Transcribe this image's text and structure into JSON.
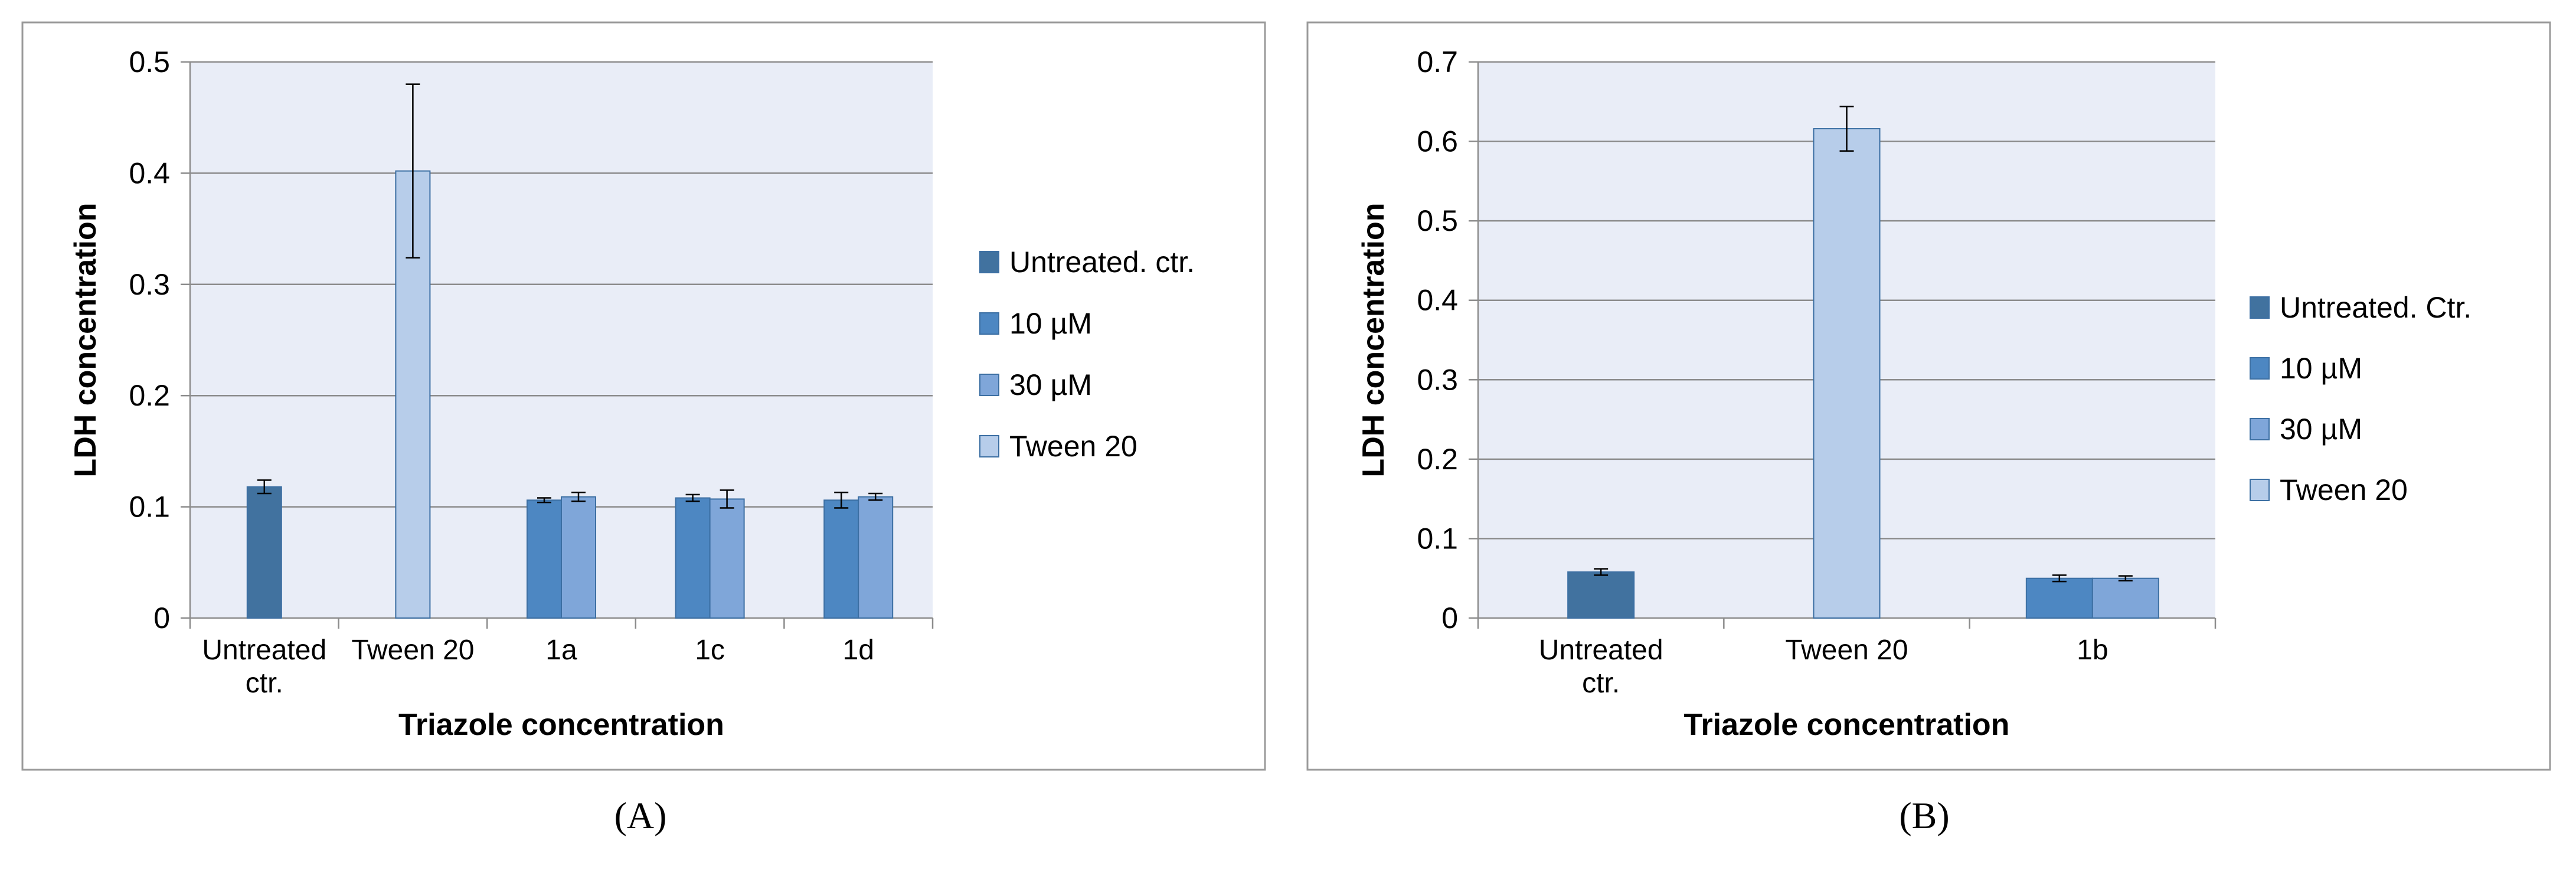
{
  "colors": {
    "untreated": "#41729F",
    "10uM": "#4D87C2",
    "30uM": "#7FA6D9",
    "tween": "#B7CDEA",
    "plot_bg": "#E9EDF7",
    "grid": "#8C8C8C",
    "frame": "#9A9A9A"
  },
  "chart_data": [
    {
      "type": "bar",
      "panel_label": "(A)",
      "ylabel": "LDH concentration",
      "xlabel": "Triazole concentration",
      "ylim": [
        0,
        0.5
      ],
      "yticks": [
        0,
        0.1,
        0.2,
        0.3,
        0.4,
        0.5
      ],
      "ytick_labels": [
        "0",
        "0.1",
        "0.2",
        "0.3",
        "0.4",
        "0.5"
      ],
      "grid": true,
      "legend_position": "right",
      "categories": [
        "Untreated ctr.",
        "Tween 20",
        "1a",
        "1c",
        "1d"
      ],
      "category_lines": [
        [
          "Untreated",
          "ctr."
        ],
        [
          "Tween 20"
        ],
        [
          "1a"
        ],
        [
          "1c"
        ],
        [
          "1d"
        ]
      ],
      "series": [
        {
          "name": "Untreated. ctr.",
          "color_key": "untreated",
          "values": [
            0.118,
            null,
            null,
            null,
            null
          ],
          "errors": [
            0.006,
            null,
            null,
            null,
            null
          ]
        },
        {
          "name": "10 µM",
          "color_key": "10uM",
          "values": [
            null,
            null,
            0.106,
            0.108,
            0.106
          ],
          "errors": [
            null,
            null,
            0.002,
            0.003,
            0.007
          ]
        },
        {
          "name": "30 µM",
          "color_key": "30uM",
          "values": [
            null,
            null,
            0.109,
            0.107,
            0.109
          ],
          "errors": [
            null,
            null,
            0.004,
            0.008,
            0.003
          ]
        },
        {
          "name": "Tween 20",
          "color_key": "tween",
          "values": [
            null,
            0.402,
            null,
            null,
            null
          ],
          "errors": [
            null,
            0.078,
            null,
            null,
            null
          ]
        }
      ]
    },
    {
      "type": "bar",
      "panel_label": "(B)",
      "ylabel": "LDH concentration",
      "xlabel": "Triazole concentration",
      "ylim": [
        0,
        0.7
      ],
      "yticks": [
        0,
        0.1,
        0.2,
        0.3,
        0.4,
        0.5,
        0.6,
        0.7
      ],
      "ytick_labels": [
        "0",
        "0.1",
        "0.2",
        "0.3",
        "0.4",
        "0.5",
        "0.6",
        "0.7"
      ],
      "grid": true,
      "legend_position": "right",
      "categories": [
        "Untreated ctr.",
        "Tween 20",
        "1b"
      ],
      "category_lines": [
        [
          "Untreated",
          "ctr."
        ],
        [
          "Tween 20"
        ],
        [
          "1b"
        ]
      ],
      "series": [
        {
          "name": "Untreated. Ctr.",
          "color_key": "untreated",
          "values": [
            0.058,
            null,
            null
          ],
          "errors": [
            0.004,
            null,
            null
          ]
        },
        {
          "name": "10 µM",
          "color_key": "10uM",
          "values": [
            null,
            null,
            0.05
          ],
          "errors": [
            null,
            null,
            0.004
          ]
        },
        {
          "name": "30 µM",
          "color_key": "30uM",
          "values": [
            null,
            null,
            0.05
          ],
          "errors": [
            null,
            null,
            0.003
          ]
        },
        {
          "name": "Tween 20",
          "color_key": "tween",
          "values": [
            null,
            0.616,
            null
          ],
          "errors": [
            null,
            0.028,
            null
          ]
        }
      ]
    }
  ]
}
